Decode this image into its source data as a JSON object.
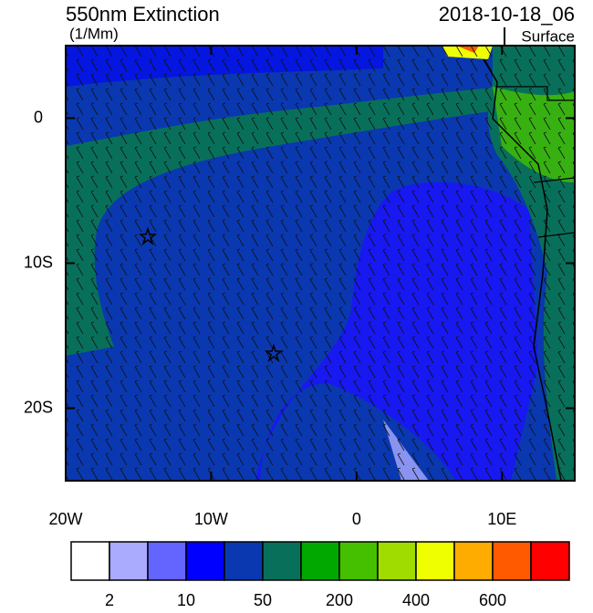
{
  "map": {
    "title": "550nm Extinction",
    "units": "(1/Mm)",
    "date": "2018-10-18_06",
    "level": "Surface",
    "xlim": [
      -20,
      15
    ],
    "ylim": [
      -25,
      5
    ],
    "xticks": [
      {
        "value": -20,
        "label": "20W"
      },
      {
        "value": -10,
        "label": "10W"
      },
      0,
      {
        "value": 10,
        "label": "10E"
      }
    ],
    "yticks": [
      0,
      {
        "value": -10,
        "label": "10S"
      },
      {
        "value": -20,
        "label": "20S"
      }
    ],
    "colorbar": {
      "colors": [
        "#ffffff",
        "#aaaaff",
        "#6464ff",
        "#0000ff",
        "#0a38b0",
        "#08705a",
        "#00a800",
        "#44c000",
        "#a0dc00",
        "#f0ff00",
        "#ffac00",
        "#ff5a00",
        "#ff0000"
      ],
      "labels": [
        "2",
        "10",
        "50",
        "200",
        "400",
        "600"
      ]
    }
  }
}
